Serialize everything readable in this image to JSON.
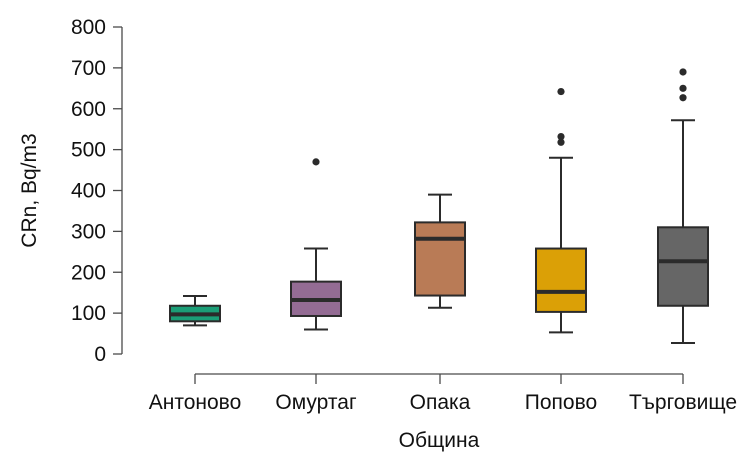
{
  "chart_data": {
    "type": "boxplot",
    "title": "",
    "xlabel": "Община",
    "ylabel": "CRn, Bq/m3",
    "ylim": [
      0,
      800
    ],
    "yticks": [
      0,
      100,
      200,
      300,
      400,
      500,
      600,
      700,
      800
    ],
    "grid": false,
    "legend": "none",
    "categories": [
      "Антоново",
      "Омуртаг",
      "Опака",
      "Попово",
      "Търговище"
    ],
    "boxes": [
      {
        "category": "Антоново",
        "whislo": 70,
        "q1": 80,
        "med": 97,
        "q3": 118,
        "whishi": 142,
        "outliers": [],
        "color": "#1b9e77"
      },
      {
        "category": "Омуртаг",
        "whislo": 60,
        "q1": 93,
        "med": 132,
        "q3": 177,
        "whishi": 258,
        "outliers": [
          470
        ],
        "color": "#946c94"
      },
      {
        "category": "Опака",
        "whislo": 113,
        "q1": 143,
        "med": 282,
        "q3": 322,
        "whishi": 390,
        "outliers": [],
        "color": "#b97b56"
      },
      {
        "category": "Попово",
        "whislo": 53,
        "q1": 103,
        "med": 152,
        "q3": 258,
        "whishi": 480,
        "outliers": [
          518,
          532,
          642
        ],
        "color": "#dba006"
      },
      {
        "category": "Търговище",
        "whislo": 27,
        "q1": 118,
        "med": 227,
        "q3": 310,
        "whishi": 572,
        "outliers": [
          627,
          650,
          690
        ],
        "color": "#666666"
      }
    ]
  }
}
